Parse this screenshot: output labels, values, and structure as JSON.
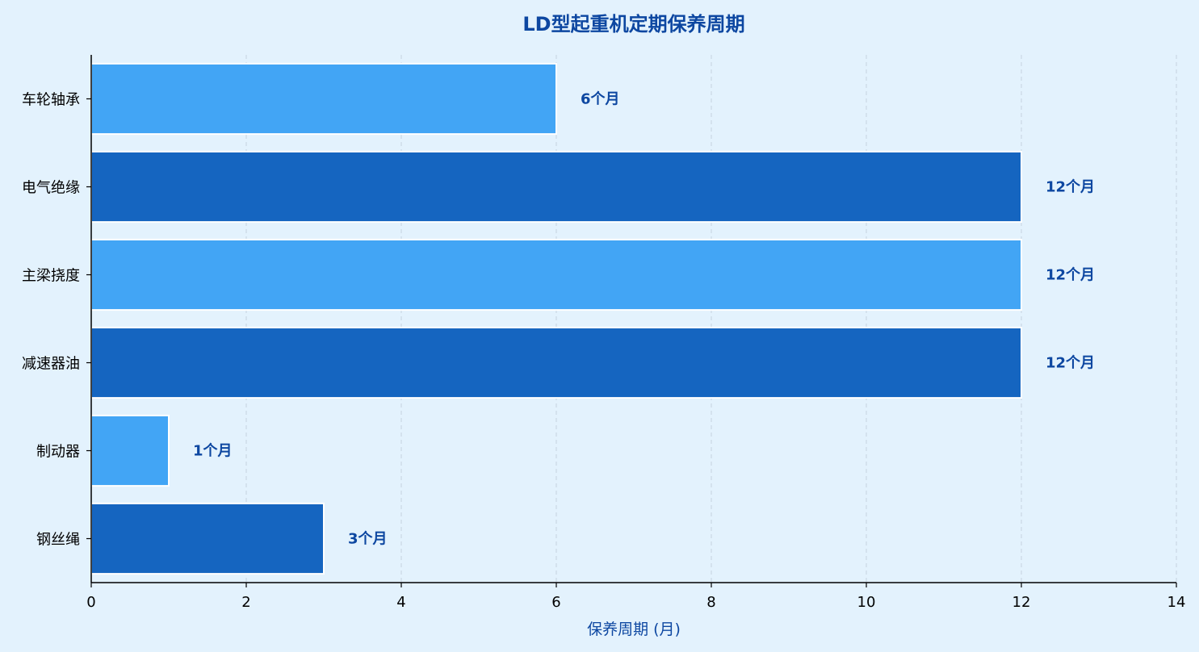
{
  "chart_data": {
    "type": "bar",
    "orientation": "horizontal",
    "title": "LD型起重机定期保养周期",
    "xlabel": "保养周期 (月)",
    "ylabel": "",
    "xlim": [
      0,
      14
    ],
    "x_ticks": [
      "0",
      "2",
      "4",
      "6",
      "8",
      "10",
      "12",
      "14"
    ],
    "grid": "vertical-dashed",
    "legend": "none",
    "categories": [
      "车轮轴承",
      "电气绝缘",
      "主梁挠度",
      "减速器油",
      "制动器",
      "钢丝绳"
    ],
    "values": [
      6,
      12,
      12,
      12,
      1,
      3
    ],
    "data_labels": [
      "6个月",
      "12个月",
      "12个月",
      "12个月",
      "1个月",
      "3个月"
    ],
    "colors": {
      "background": "#e3f2fd",
      "bar_light": "#42a5f5",
      "bar_dark": "#1565c0",
      "text_accent": "#0d47a1",
      "grid": "#c5d3df",
      "axis": "#000000"
    }
  }
}
